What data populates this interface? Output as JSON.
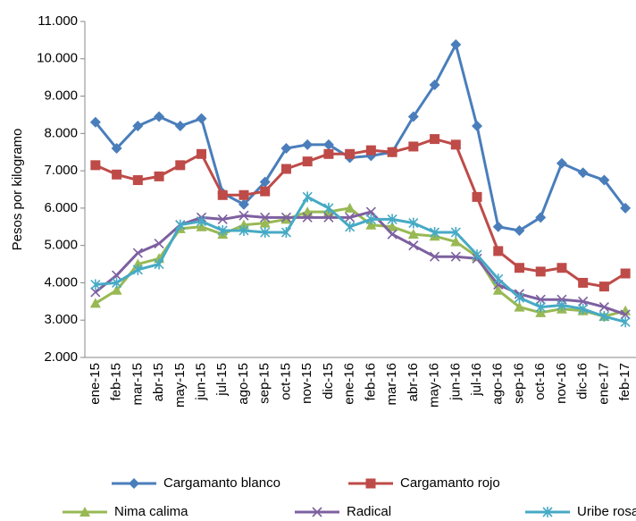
{
  "chart_data": {
    "type": "line",
    "y_label": "Pesos por kilogramo",
    "categories": [
      "ene-15",
      "feb-15",
      "mar-15",
      "abr-15",
      "may-15",
      "jun-15",
      "jul-15",
      "ago-15",
      "sep-15",
      "oct-15",
      "nov-15",
      "dic-15",
      "ene-16",
      "feb-16",
      "mar-16",
      "abr-16",
      "may-16",
      "jun-16",
      "jul-16",
      "ago-16",
      "sep-16",
      "oct-16",
      "nov-16",
      "dic-16",
      "ene-17",
      "feb-17"
    ],
    "series": [
      {
        "name": "Cargamanto blanco",
        "color": "#4a7ebb",
        "marker": "diamond",
        "values": [
          8300,
          7600,
          8200,
          8450,
          8200,
          8400,
          6400,
          6100,
          6700,
          7600,
          7700,
          7700,
          7350,
          7400,
          7500,
          8450,
          9300,
          10380,
          8200,
          5500,
          5400,
          5750,
          7200,
          6950,
          6750,
          6000
        ]
      },
      {
        "name": "Cargamanto rojo",
        "color": "#be4b48",
        "marker": "square",
        "values": [
          7150,
          6900,
          6750,
          6850,
          7150,
          7450,
          6350,
          6350,
          6450,
          7050,
          7250,
          7450,
          7450,
          7550,
          7500,
          7650,
          7850,
          7700,
          6300,
          4850,
          4400,
          4300,
          4400,
          4000,
          3900,
          4250
        ]
      },
      {
        "name": "Nima calima",
        "color": "#98b954",
        "marker": "triangle",
        "values": [
          3450,
          3800,
          4500,
          4650,
          5450,
          5500,
          5300,
          5550,
          5600,
          5700,
          5900,
          5900,
          6000,
          5550,
          5500,
          5300,
          5250,
          5100,
          4700,
          3800,
          3350,
          3200,
          3300,
          3250,
          3100,
          3250
        ]
      },
      {
        "name": "Radical",
        "color": "#7d60a0",
        "marker": "x",
        "values": [
          3750,
          4200,
          4800,
          5050,
          5550,
          5750,
          5700,
          5800,
          5750,
          5750,
          5750,
          5750,
          5750,
          5900,
          5300,
          5000,
          4700,
          4700,
          4650,
          3950,
          3700,
          3550,
          3550,
          3500,
          3350,
          3150
        ]
      },
      {
        "name": "Uribe rosado",
        "color": "#46aac5",
        "marker": "star",
        "values": [
          3950,
          4000,
          4350,
          4500,
          5550,
          5650,
          5400,
          5400,
          5350,
          5350,
          6300,
          6000,
          5500,
          5700,
          5700,
          5600,
          5350,
          5350,
          4750,
          4100,
          3600,
          3350,
          3400,
          3300,
          3100,
          2950
        ]
      }
    ],
    "ylim": [
      2000,
      11000
    ],
    "yticks": [
      {
        "value": 2000,
        "label": "2.000"
      },
      {
        "value": 3000,
        "label": "3.000"
      },
      {
        "value": 4000,
        "label": "4.000"
      },
      {
        "value": 5000,
        "label": "5.000"
      },
      {
        "value": 6000,
        "label": "6.000"
      },
      {
        "value": 7000,
        "label": "7.000"
      },
      {
        "value": 8000,
        "label": "8.000"
      },
      {
        "value": 9000,
        "label": "9.000"
      },
      {
        "value": 10000,
        "label": "10.000"
      },
      {
        "value": 11000,
        "label": "11.000"
      }
    ],
    "legend": "bottom"
  }
}
